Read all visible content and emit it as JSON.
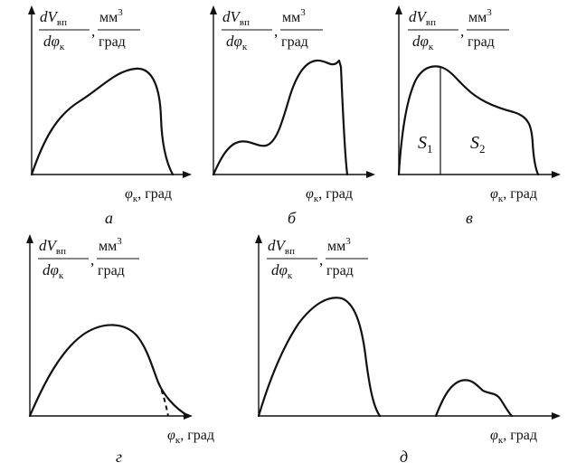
{
  "panels": [
    {
      "id": "a",
      "caption": "а",
      "ylabel": {
        "num": "dV",
        "num_sub": "вп",
        "den": "dφ",
        "den_sub": "к",
        "unit_num": "мм",
        "unit_sup": "3",
        "unit_den": "град"
      },
      "xlabel": {
        "symbol": "φ",
        "sub": "к",
        "unit": ", град"
      }
    },
    {
      "id": "b",
      "caption": "б",
      "ylabel": {
        "num": "dV",
        "num_sub": "вп",
        "den": "dφ",
        "den_sub": "к",
        "unit_num": "мм",
        "unit_sup": "3",
        "unit_den": "град"
      },
      "xlabel": {
        "symbol": "φ",
        "sub": "к",
        "unit": ", град"
      }
    },
    {
      "id": "v",
      "caption": "в",
      "ylabel": {
        "num": "dV",
        "num_sub": "вп",
        "den": "dφ",
        "den_sub": "к",
        "unit_num": "мм",
        "unit_sup": "3",
        "unit_den": "град"
      },
      "xlabel": {
        "symbol": "φ",
        "sub": "к",
        "unit": ", град"
      },
      "areas": {
        "s1": "S",
        "s1_sub": "1",
        "s2": "S",
        "s2_sub": "2"
      }
    },
    {
      "id": "g",
      "caption": "г",
      "ylabel": {
        "num": "dV",
        "num_sub": "вп",
        "den": "dφ",
        "den_sub": "к",
        "unit_num": "мм",
        "unit_sup": "3",
        "unit_den": "град"
      },
      "xlabel": {
        "symbol": "φ",
        "sub": "к",
        "unit": ", град"
      }
    },
    {
      "id": "d",
      "caption": "д",
      "ylabel": {
        "num": "dV",
        "num_sub": "вп",
        "den": "dφ",
        "den_sub": "к",
        "unit_num": "мм",
        "unit_sup": "3",
        "unit_den": "град"
      },
      "xlabel": {
        "symbol": "φ",
        "sub": "к",
        "unit": ", град"
      }
    }
  ]
}
